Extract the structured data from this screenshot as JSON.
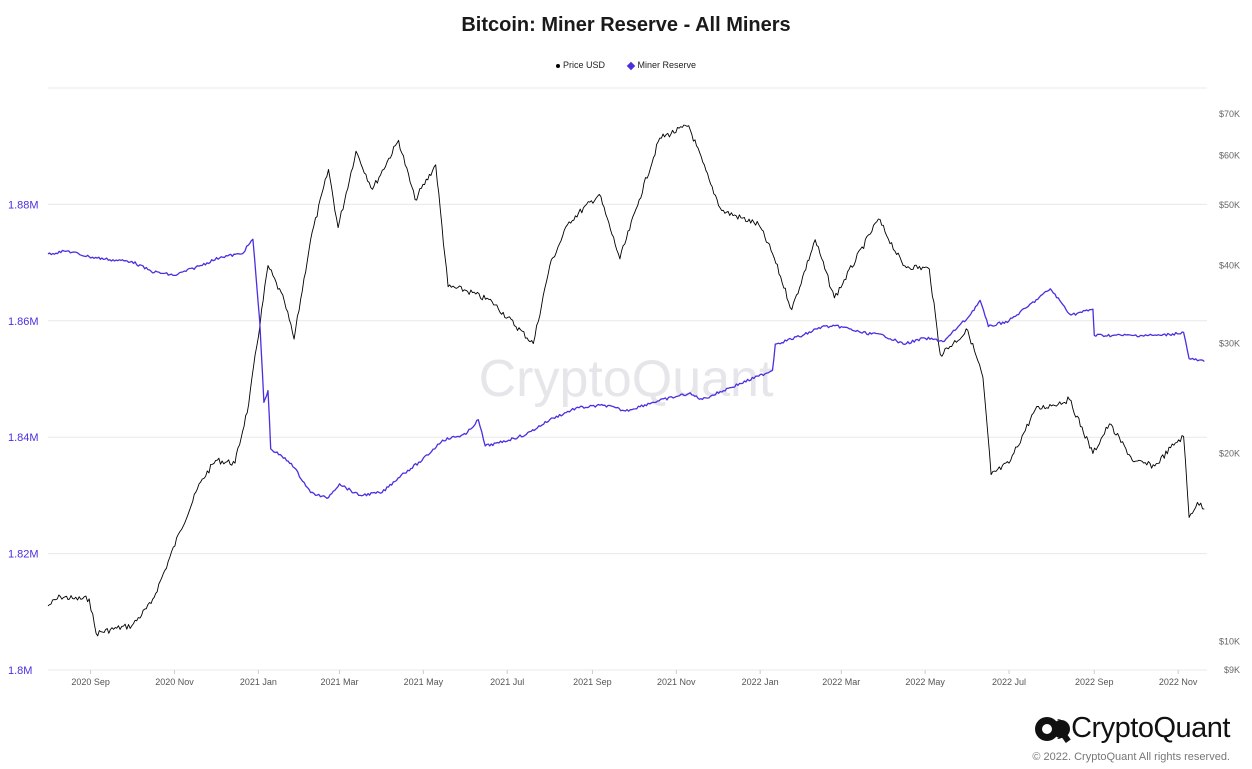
{
  "chart_data": {
    "type": "line",
    "title": "Bitcoin: Miner Reserve - All Miners",
    "legend": [
      {
        "name": "Price USD",
        "color": "#000000",
        "marker": "dot"
      },
      {
        "name": "Miner Reserve",
        "color": "#4a2fe0",
        "marker": "diamond"
      }
    ],
    "legend_placement": "top-center",
    "grid": true,
    "x_ticks": [
      "2020 Sep",
      "2020 Nov",
      "2021 Jan",
      "2021 Mar",
      "2021 May",
      "2021 Jul",
      "2021 Sep",
      "2021 Nov",
      "2022 Jan",
      "2022 Mar",
      "2022 May",
      "2022 Jul",
      "2022 Sep",
      "2022 Nov"
    ],
    "y_left": {
      "label": "",
      "ticks": [
        "1.8M",
        "1.82M",
        "1.84M",
        "1.86M",
        "1.88M"
      ],
      "range": [
        1800000,
        1900000
      ]
    },
    "y_right": {
      "label": "",
      "scale": "log",
      "ticks": [
        "$9K",
        "$10K",
        "$20K",
        "$30K",
        "$40K",
        "$50K",
        "$60K",
        "$70K"
      ],
      "range": [
        9000,
        77000
      ]
    },
    "series": [
      {
        "name": "Price USD",
        "axis": "right",
        "color": "#000000",
        "points": [
          [
            "2020-08-01",
            11400
          ],
          [
            "2020-08-10",
            11800
          ],
          [
            "2020-08-20",
            11700
          ],
          [
            "2020-08-31",
            11700
          ],
          [
            "2020-09-05",
            10300
          ],
          [
            "2020-09-20",
            10500
          ],
          [
            "2020-10-01",
            10600
          ],
          [
            "2020-10-15",
            11500
          ],
          [
            "2020-10-25",
            13000
          ],
          [
            "2020-11-05",
            15000
          ],
          [
            "2020-11-20",
            18000
          ],
          [
            "2020-12-01",
            19500
          ],
          [
            "2020-12-15",
            19300
          ],
          [
            "2020-12-25",
            24000
          ],
          [
            "2021-01-08",
            40000
          ],
          [
            "2021-01-20",
            35000
          ],
          [
            "2021-01-27",
            30500
          ],
          [
            "2021-02-08",
            44000
          ],
          [
            "2021-02-21",
            57000
          ],
          [
            "2021-02-28",
            46000
          ],
          [
            "2021-03-13",
            61000
          ],
          [
            "2021-03-25",
            53000
          ],
          [
            "2021-04-13",
            63500
          ],
          [
            "2021-04-25",
            51000
          ],
          [
            "2021-05-10",
            58000
          ],
          [
            "2021-05-19",
            37000
          ],
          [
            "2021-06-01",
            36500
          ],
          [
            "2021-06-20",
            35000
          ],
          [
            "2021-07-20",
            30000
          ],
          [
            "2021-08-01",
            40000
          ],
          [
            "2021-08-15",
            47000
          ],
          [
            "2021-09-06",
            52000
          ],
          [
            "2021-09-21",
            41000
          ],
          [
            "2021-10-05",
            51000
          ],
          [
            "2021-10-20",
            64000
          ],
          [
            "2021-11-10",
            67000
          ],
          [
            "2021-11-26",
            54000
          ],
          [
            "2021-12-04",
            49000
          ],
          [
            "2021-12-31",
            46500
          ],
          [
            "2022-01-10",
            41800
          ],
          [
            "2022-01-24",
            34000
          ],
          [
            "2022-02-10",
            44000
          ],
          [
            "2022-02-24",
            35500
          ],
          [
            "2022-03-28",
            47500
          ],
          [
            "2022-04-15",
            40000
          ],
          [
            "2022-05-04",
            39500
          ],
          [
            "2022-05-12",
            28800
          ],
          [
            "2022-06-01",
            31500
          ],
          [
            "2022-06-12",
            26500
          ],
          [
            "2022-06-18",
            18500
          ],
          [
            "2022-07-01",
            19300
          ],
          [
            "2022-07-20",
            23500
          ],
          [
            "2022-08-14",
            24400
          ],
          [
            "2022-08-31",
            20000
          ],
          [
            "2022-09-12",
            22300
          ],
          [
            "2022-09-30",
            19400
          ],
          [
            "2022-10-15",
            19100
          ],
          [
            "2022-10-30",
            20800
          ],
          [
            "2022-11-05",
            21300
          ],
          [
            "2022-11-09",
            15800
          ],
          [
            "2022-11-15",
            16700
          ],
          [
            "2022-11-20",
            16300
          ]
        ]
      },
      {
        "name": "Miner Reserve",
        "axis": "left",
        "color": "#4a2fe0",
        "points": [
          [
            "2020-08-01",
            1871500
          ],
          [
            "2020-08-15",
            1872000
          ],
          [
            "2020-08-31",
            1871000
          ],
          [
            "2020-09-15",
            1870500
          ],
          [
            "2020-10-01",
            1870200
          ],
          [
            "2020-10-15",
            1868500
          ],
          [
            "2020-11-01",
            1867800
          ],
          [
            "2020-11-20",
            1869500
          ],
          [
            "2020-12-05",
            1871000
          ],
          [
            "2020-12-20",
            1871500
          ],
          [
            "2020-12-28",
            1874000
          ],
          [
            "2021-01-02",
            1860000
          ],
          [
            "2021-01-05",
            1846000
          ],
          [
            "2021-01-08",
            1848000
          ],
          [
            "2021-01-10",
            1838000
          ],
          [
            "2021-01-25",
            1835500
          ],
          [
            "2021-02-08",
            1830500
          ],
          [
            "2021-02-20",
            1829500
          ],
          [
            "2021-03-01",
            1832000
          ],
          [
            "2021-03-15",
            1830000
          ],
          [
            "2021-04-01",
            1830500
          ],
          [
            "2021-04-15",
            1833500
          ],
          [
            "2021-04-30",
            1836000
          ],
          [
            "2021-05-15",
            1839500
          ],
          [
            "2021-06-01",
            1840500
          ],
          [
            "2021-06-10",
            1843000
          ],
          [
            "2021-06-15",
            1838500
          ],
          [
            "2021-06-25",
            1839000
          ],
          [
            "2021-07-15",
            1840500
          ],
          [
            "2021-08-01",
            1843000
          ],
          [
            "2021-08-20",
            1845000
          ],
          [
            "2021-09-10",
            1845500
          ],
          [
            "2021-09-25",
            1844500
          ],
          [
            "2021-10-15",
            1846000
          ],
          [
            "2021-11-01",
            1847000
          ],
          [
            "2021-11-10",
            1847500
          ],
          [
            "2021-11-20",
            1846500
          ],
          [
            "2021-12-10",
            1848500
          ],
          [
            "2021-12-31",
            1850500
          ],
          [
            "2022-01-10",
            1851500
          ],
          [
            "2022-01-12",
            1856000
          ],
          [
            "2022-02-01",
            1857500
          ],
          [
            "2022-02-15",
            1859000
          ],
          [
            "2022-03-01",
            1859000
          ],
          [
            "2022-03-15",
            1858000
          ],
          [
            "2022-04-01",
            1857500
          ],
          [
            "2022-04-15",
            1856000
          ],
          [
            "2022-05-01",
            1857000
          ],
          [
            "2022-05-15",
            1856500
          ],
          [
            "2022-05-25",
            1859000
          ],
          [
            "2022-06-01",
            1860500
          ],
          [
            "2022-06-10",
            1863500
          ],
          [
            "2022-06-16",
            1859000
          ],
          [
            "2022-07-01",
            1860000
          ],
          [
            "2022-07-15",
            1862500
          ],
          [
            "2022-07-31",
            1865500
          ],
          [
            "2022-08-15",
            1861000
          ],
          [
            "2022-08-31",
            1862000
          ],
          [
            "2022-09-01",
            1857500
          ],
          [
            "2022-09-30",
            1857500
          ],
          [
            "2022-10-20",
            1857500
          ],
          [
            "2022-11-05",
            1858000
          ],
          [
            "2022-11-09",
            1853500
          ],
          [
            "2022-11-20",
            1853000
          ]
        ]
      }
    ],
    "watermark": "CryptoQuant"
  },
  "brand": {
    "name": "CryptoQuant",
    "copyright": "© 2022. CryptoQuant All rights reserved."
  }
}
